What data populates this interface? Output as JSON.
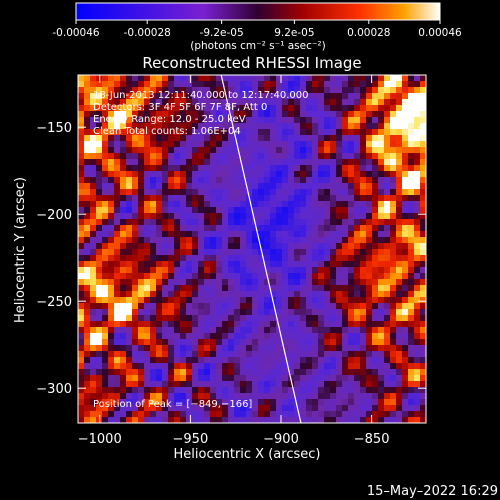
{
  "colorbar": {
    "ticks": [
      "-0.00046",
      "-0.00028",
      "-9.2e-05",
      "9.2e-05",
      "0.00028",
      "0.00046"
    ],
    "unit_label": "(photons cm⁻² s⁻¹ asec⁻²)",
    "range": [
      -0.00046,
      0.00046
    ]
  },
  "chart_data": {
    "type": "heatmap",
    "title": "Reconstructed RHESSI Image",
    "xlabel": "Heliocentric X (arcsec)",
    "ylabel": "Heliocentric Y (arcsec)",
    "xlim": [
      -1012,
      -820
    ],
    "ylim": [
      -320,
      -120
    ],
    "x_ticks": [
      -1000,
      -950,
      -900,
      -850
    ],
    "y_ticks": [
      -300,
      -250,
      -200,
      -150
    ],
    "x_tick_labels": [
      "−1000",
      "−950",
      "−900",
      "−850"
    ],
    "y_tick_labels": [
      "−300",
      "−250",
      "−200",
      "−150"
    ],
    "peak": [
      -849,
      -166
    ],
    "limb_line": [
      [
        -933,
        -120
      ],
      [
        -889,
        -320
      ]
    ],
    "annotations": [
      "18-Jun-2013 12:11:40.000 to 12:17:40.000",
      "Detectors: 3F 4F 5F 6F 7F 8F, Att 0",
      "Energy Range: 12.0 - 25.0 keV",
      "Clean    Total counts: 1.06E+04"
    ],
    "peak_label": "Position of Peak = [−849,−166]"
  },
  "footer": {
    "timestamp": "15–May–2022 16:29"
  },
  "colors": {
    "background": "#000000",
    "foreground": "#ffffff"
  }
}
